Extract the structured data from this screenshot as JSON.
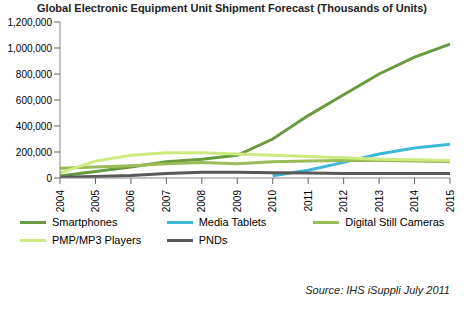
{
  "chart_data": {
    "type": "line",
    "title": "Global Electronic Equipment Unit Shipment Forecast (Thousands of Units)",
    "annotations": [
      "Source: IHS iSuppli July 2011"
    ],
    "categories": [
      "2004",
      "2005",
      "2006",
      "2007",
      "2008",
      "2009",
      "2010",
      "2011",
      "2012",
      "2013",
      "2014",
      "2015"
    ],
    "series": [
      {
        "name": "Smartphones",
        "color": "#6a9a40",
        "values": [
          15000,
          50000,
          85000,
          125000,
          145000,
          175000,
          300000,
          480000,
          640000,
          800000,
          930000,
          1030000
        ]
      },
      {
        "name": "Media Tablets",
        "color": "#3db8d8",
        "values": [
          null,
          null,
          null,
          null,
          null,
          null,
          18000,
          60000,
          120000,
          185000,
          230000,
          260000
        ]
      },
      {
        "name": "Digital Still Cameras",
        "color": "#9bbb59",
        "values": [
          75000,
          85000,
          95000,
          110000,
          120000,
          110000,
          125000,
          130000,
          135000,
          135000,
          130000,
          125000
        ]
      },
      {
        "name": "PMP/MP3 Players",
        "color": "#cdea80",
        "values": [
          40000,
          130000,
          175000,
          195000,
          195000,
          185000,
          175000,
          165000,
          155000,
          145000,
          140000,
          135000
        ]
      },
      {
        "name": "PNDs",
        "color": "#595959",
        "values": [
          5000,
          12000,
          20000,
          35000,
          45000,
          45000,
          40000,
          38000,
          35000,
          35000,
          35000,
          35000
        ]
      }
    ],
    "ylim": [
      0,
      1200000
    ],
    "yticks": [
      {
        "value": 0,
        "label": "0"
      },
      {
        "value": 200000,
        "label": "200,000"
      },
      {
        "value": 400000,
        "label": "400,000"
      },
      {
        "value": 600000,
        "label": "600,000"
      },
      {
        "value": 800000,
        "label": "800,000"
      },
      {
        "value": 1000000,
        "label": "1,000,000"
      },
      {
        "value": 1200000,
        "label": "1,200,000"
      }
    ],
    "grid": false,
    "legend": "bottom"
  }
}
